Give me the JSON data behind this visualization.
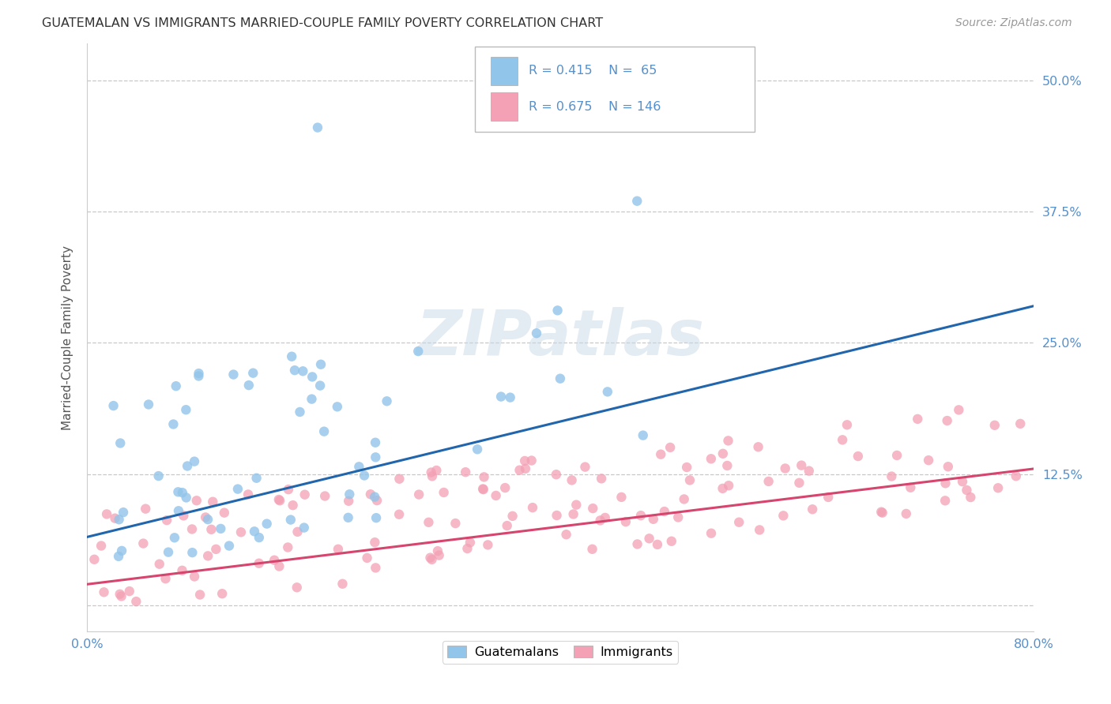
{
  "title": "GUATEMALAN VS IMMIGRANTS MARRIED-COUPLE FAMILY POVERTY CORRELATION CHART",
  "source": "Source: ZipAtlas.com",
  "ylabel": "Married-Couple Family Poverty",
  "ytick_labels": [
    "",
    "12.5%",
    "25.0%",
    "37.5%",
    "50.0%"
  ],
  "ytick_values": [
    0.0,
    0.125,
    0.25,
    0.375,
    0.5
  ],
  "xmin": 0.0,
  "xmax": 0.8,
  "ymin": -0.025,
  "ymax": 0.535,
  "guatemalan_R": 0.415,
  "guatemalan_N": 65,
  "immigrant_R": 0.675,
  "immigrant_N": 146,
  "guatemalan_color": "#92C5EA",
  "guatemalan_line_color": "#2166AC",
  "immigrant_color": "#F4A0B5",
  "immigrant_line_color": "#D6456E",
  "watermark_color": "#C8D8E8",
  "legend_guatemalans": "Guatemalans",
  "legend_immigrants": "Immigrants",
  "background_color": "#FFFFFF",
  "grid_color": "#C8C8C8",
  "tick_label_color": "#5590CC",
  "title_color": "#333333",
  "source_color": "#999999",
  "ylabel_color": "#555555",
  "guat_line_start_y": 0.065,
  "guat_line_end_y": 0.285,
  "imm_line_start_y": 0.02,
  "imm_line_end_y": 0.13
}
